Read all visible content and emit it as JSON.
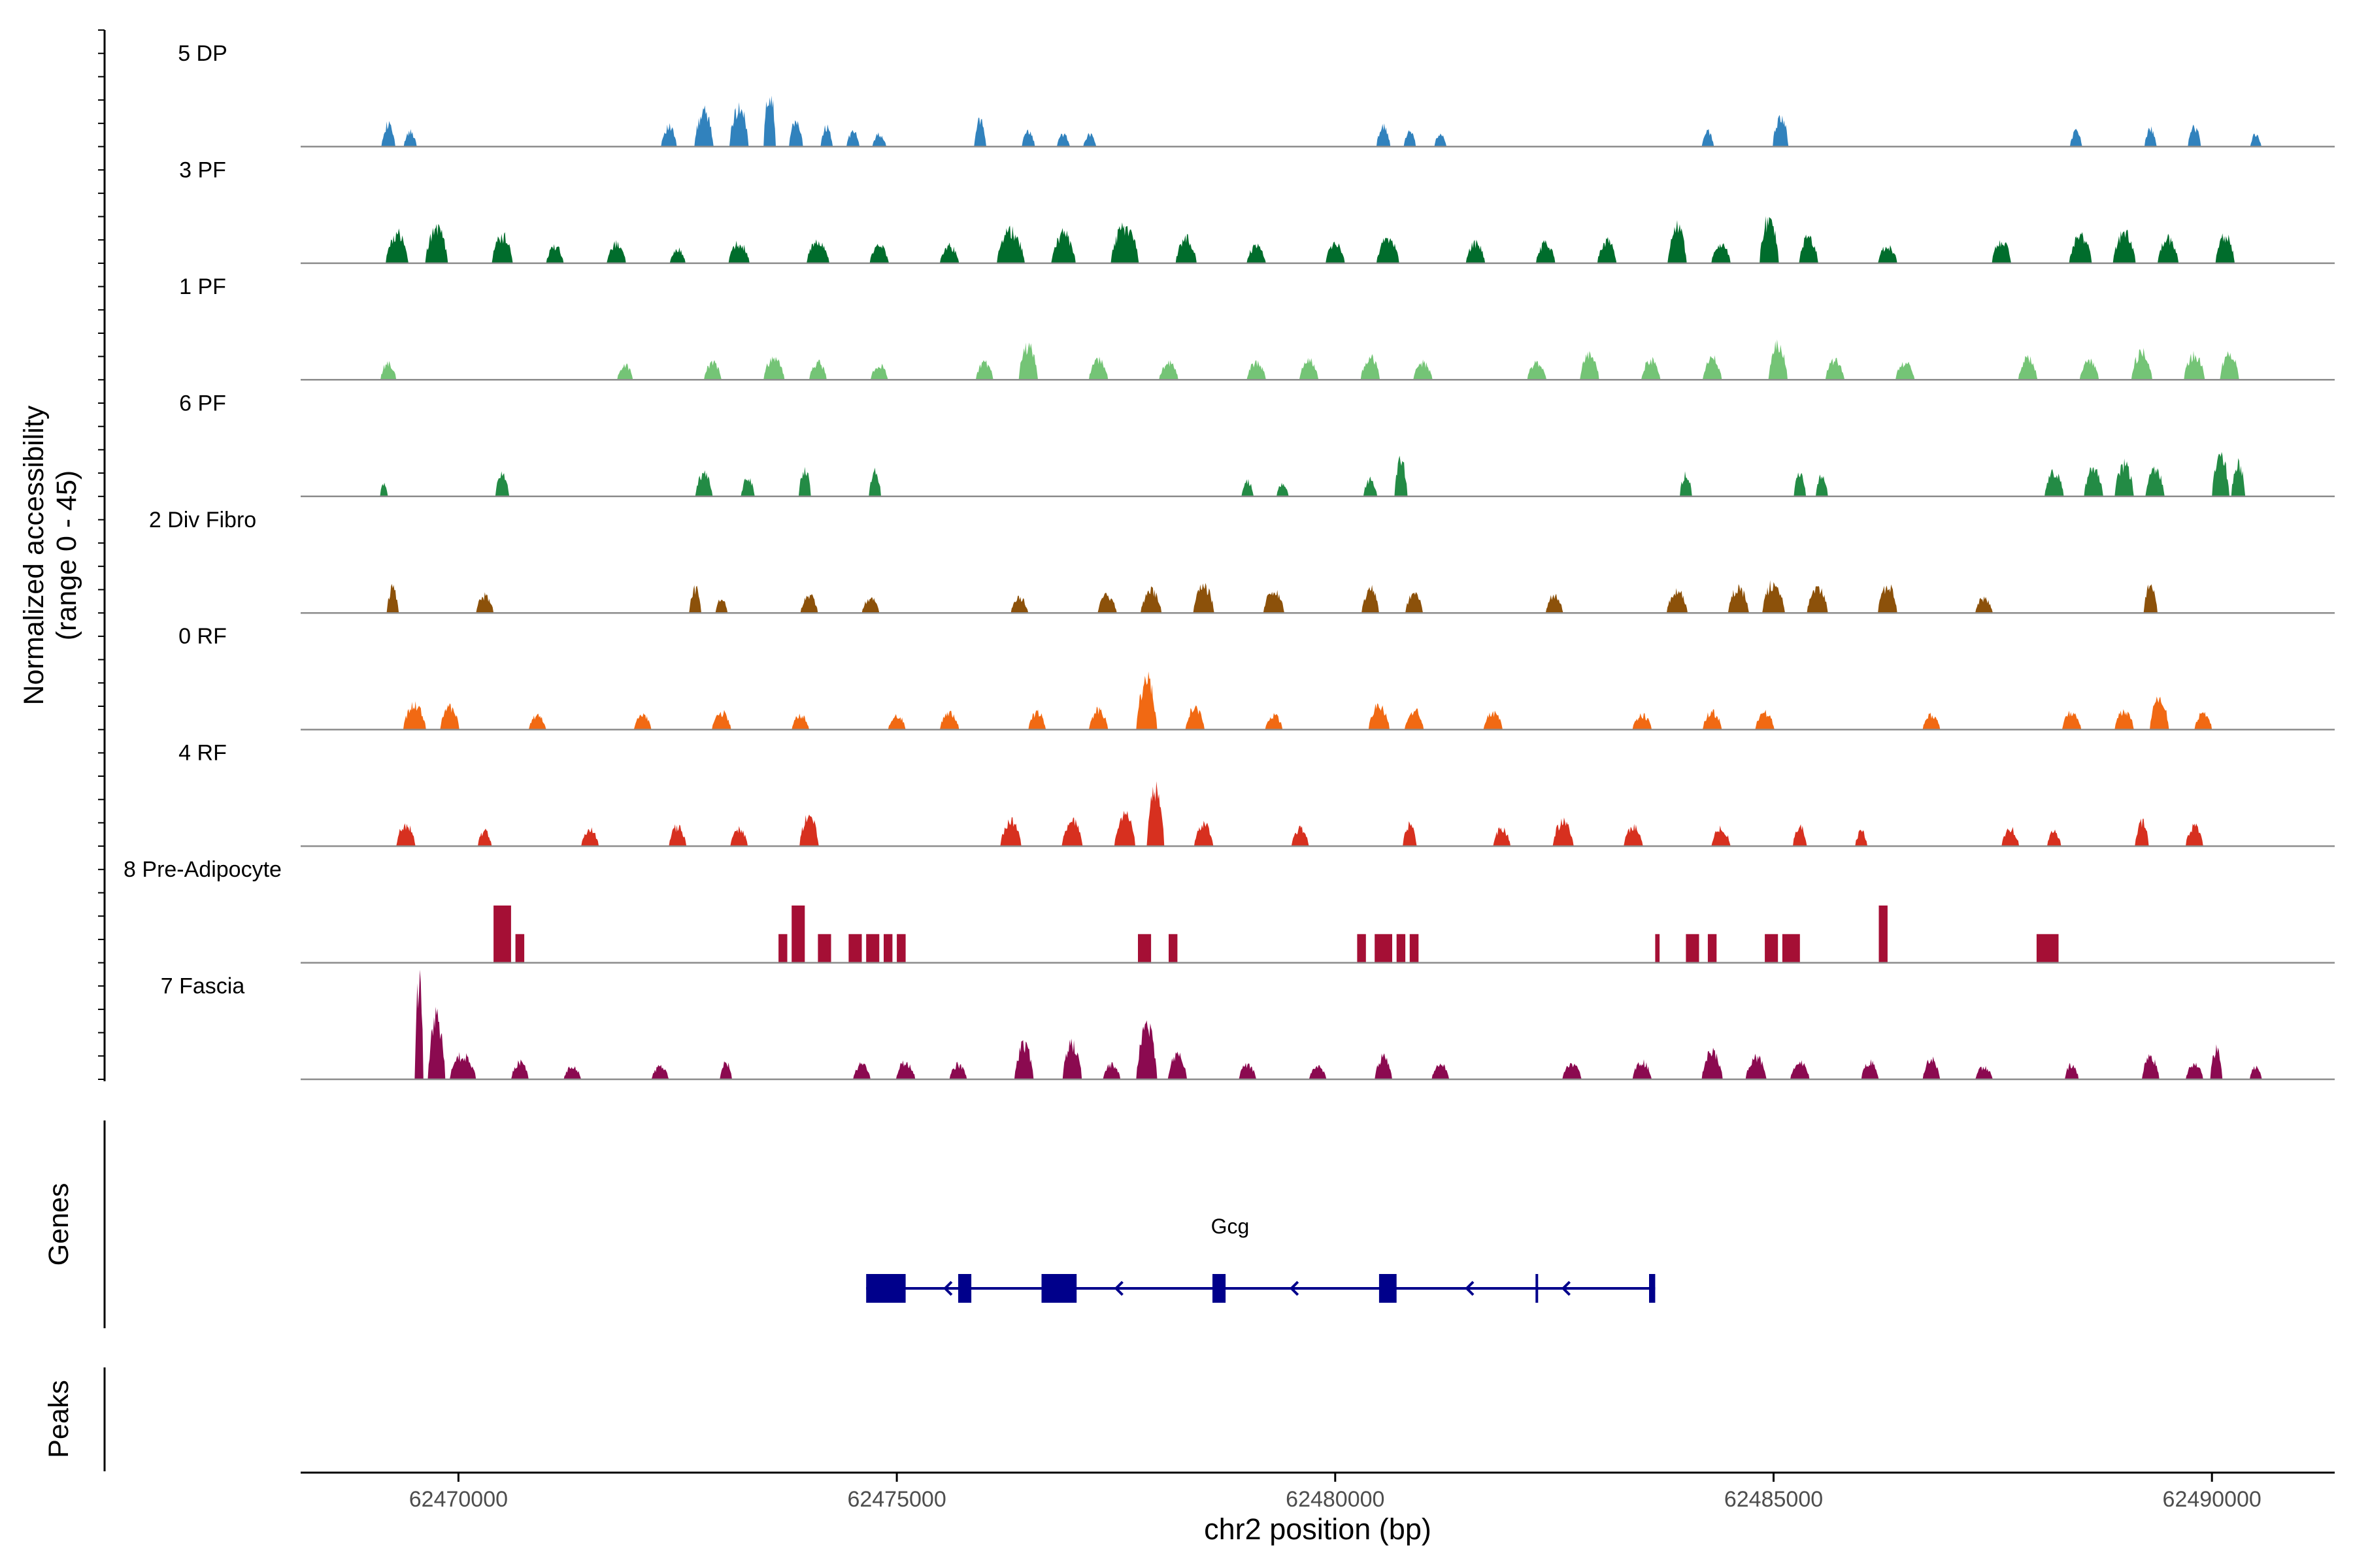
{
  "chart_data": {
    "type": "area",
    "title": "",
    "region": {
      "chromosome": "chr2",
      "start": 62468200,
      "end": 62491400
    },
    "ylabel": "Normalized accessibility",
    "ylabel_range": "(range 0 - 45)",
    "ylim": [
      0,
      45
    ],
    "xlabel": "chr2 position (bp)",
    "x_ticks": [
      62470000,
      62475000,
      62480000,
      62485000,
      62490000
    ],
    "x_tick_labels": [
      "62470000",
      "62475000",
      "62480000",
      "62485000",
      "62490000"
    ],
    "series": [
      {
        "name": "5 DP",
        "color": "#3182BD",
        "peaks": [
          [
            62469200,
            9,
            160
          ],
          [
            62469450,
            6,
            150
          ],
          [
            62472400,
            8,
            180
          ],
          [
            62472800,
            14,
            220
          ],
          [
            62473200,
            16,
            220
          ],
          [
            62473550,
            22,
            140
          ],
          [
            62473850,
            10,
            160
          ],
          [
            62474200,
            8,
            140
          ],
          [
            62474500,
            6,
            150
          ],
          [
            62474800,
            5,
            160
          ],
          [
            62475950,
            11,
            140
          ],
          [
            62476500,
            6,
            150
          ],
          [
            62476900,
            5,
            150
          ],
          [
            62477200,
            5,
            150
          ],
          [
            62480550,
            8,
            160
          ],
          [
            62480850,
            6,
            140
          ],
          [
            62481200,
            5,
            140
          ],
          [
            62484250,
            6,
            140
          ],
          [
            62485080,
            12,
            180
          ],
          [
            62488450,
            6,
            140
          ],
          [
            62489300,
            7,
            140
          ],
          [
            62489800,
            8,
            150
          ],
          [
            62490500,
            5,
            130
          ]
        ]
      },
      {
        "name": "3 PF",
        "color": "#006D2C",
        "peaks": [
          [
            62469300,
            12,
            260
          ],
          [
            62469750,
            14,
            260
          ],
          [
            62470500,
            11,
            240
          ],
          [
            62471100,
            7,
            200
          ],
          [
            62471800,
            8,
            220
          ],
          [
            62472500,
            6,
            180
          ],
          [
            62473200,
            8,
            240
          ],
          [
            62474100,
            9,
            260
          ],
          [
            62474800,
            7,
            220
          ],
          [
            62475600,
            7,
            220
          ],
          [
            62476300,
            13,
            320
          ],
          [
            62476900,
            12,
            280
          ],
          [
            62477600,
            15,
            320
          ],
          [
            62478300,
            10,
            240
          ],
          [
            62479100,
            7,
            220
          ],
          [
            62480000,
            8,
            220
          ],
          [
            62480600,
            10,
            260
          ],
          [
            62481600,
            8,
            220
          ],
          [
            62482400,
            8,
            220
          ],
          [
            62483100,
            9,
            220
          ],
          [
            62483900,
            15,
            220
          ],
          [
            62484400,
            8,
            220
          ],
          [
            62484950,
            18,
            220
          ],
          [
            62485400,
            11,
            220
          ],
          [
            62486300,
            7,
            220
          ],
          [
            62487600,
            9,
            220
          ],
          [
            62488500,
            11,
            260
          ],
          [
            62489000,
            12,
            260
          ],
          [
            62489500,
            10,
            240
          ],
          [
            62490150,
            11,
            220
          ]
        ]
      },
      {
        "name": "1 PF",
        "color": "#74C476",
        "peaks": [
          [
            62469200,
            7,
            180
          ],
          [
            62471900,
            6,
            180
          ],
          [
            62472900,
            7,
            200
          ],
          [
            62473600,
            9,
            240
          ],
          [
            62474100,
            7,
            200
          ],
          [
            62474800,
            6,
            200
          ],
          [
            62476000,
            7,
            200
          ],
          [
            62476500,
            14,
            220
          ],
          [
            62477300,
            8,
            220
          ],
          [
            62478100,
            7,
            220
          ],
          [
            62479100,
            7,
            220
          ],
          [
            62479700,
            8,
            220
          ],
          [
            62480400,
            9,
            220
          ],
          [
            62481000,
            7,
            220
          ],
          [
            62482300,
            7,
            220
          ],
          [
            62482900,
            11,
            220
          ],
          [
            62483600,
            8,
            220
          ],
          [
            62484300,
            9,
            220
          ],
          [
            62485050,
            14,
            220
          ],
          [
            62485700,
            8,
            220
          ],
          [
            62486500,
            7,
            220
          ],
          [
            62487900,
            9,
            220
          ],
          [
            62488600,
            8,
            220
          ],
          [
            62489200,
            11,
            240
          ],
          [
            62489800,
            10,
            240
          ],
          [
            62490200,
            11,
            220
          ]
        ]
      },
      {
        "name": "6 PF",
        "color": "#238B45",
        "peaks": [
          [
            62469150,
            5,
            90
          ],
          [
            62470500,
            9,
            160
          ],
          [
            62472800,
            9,
            200
          ],
          [
            62473300,
            7,
            160
          ],
          [
            62473950,
            11,
            140
          ],
          [
            62474750,
            10,
            140
          ],
          [
            62479000,
            6,
            140
          ],
          [
            62479400,
            5,
            140
          ],
          [
            62480400,
            7,
            160
          ],
          [
            62480750,
            15,
            150
          ],
          [
            62484000,
            9,
            140
          ],
          [
            62485300,
            9,
            140
          ],
          [
            62485550,
            8,
            140
          ],
          [
            62488200,
            10,
            220
          ],
          [
            62488650,
            11,
            220
          ],
          [
            62489000,
            13,
            220
          ],
          [
            62489350,
            11,
            220
          ],
          [
            62490100,
            16,
            200
          ],
          [
            62490300,
            13,
            160
          ]
        ]
      },
      {
        "name": "2 Div Fibro",
        "color": "#8C510A",
        "peaks": [
          [
            62469250,
            10,
            140
          ],
          [
            62470300,
            7,
            200
          ],
          [
            62472700,
            10,
            140
          ],
          [
            62473000,
            6,
            140
          ],
          [
            62474000,
            7,
            200
          ],
          [
            62474700,
            6,
            200
          ],
          [
            62476400,
            6,
            200
          ],
          [
            62477400,
            7,
            220
          ],
          [
            62477900,
            9,
            240
          ],
          [
            62478500,
            11,
            240
          ],
          [
            62479300,
            9,
            240
          ],
          [
            62480400,
            10,
            200
          ],
          [
            62480900,
            8,
            200
          ],
          [
            62482500,
            7,
            200
          ],
          [
            62483900,
            9,
            240
          ],
          [
            62484600,
            10,
            240
          ],
          [
            62485000,
            12,
            260
          ],
          [
            62485500,
            10,
            240
          ],
          [
            62486300,
            11,
            220
          ],
          [
            62487400,
            6,
            200
          ],
          [
            62489300,
            11,
            160
          ]
        ]
      },
      {
        "name": "0 RF",
        "color": "#F16913",
        "peaks": [
          [
            62469500,
            10,
            260
          ],
          [
            62469900,
            9,
            220
          ],
          [
            62470900,
            6,
            200
          ],
          [
            62472100,
            6,
            200
          ],
          [
            62473000,
            7,
            220
          ],
          [
            62473900,
            6,
            200
          ],
          [
            62475000,
            6,
            200
          ],
          [
            62475600,
            7,
            220
          ],
          [
            62476600,
            7,
            200
          ],
          [
            62477300,
            8,
            220
          ],
          [
            62477850,
            20,
            240
          ],
          [
            62478400,
            9,
            220
          ],
          [
            62479300,
            6,
            200
          ],
          [
            62480500,
            10,
            240
          ],
          [
            62480900,
            8,
            220
          ],
          [
            62481800,
            7,
            220
          ],
          [
            62483500,
            6,
            220
          ],
          [
            62484300,
            7,
            220
          ],
          [
            62484900,
            7,
            220
          ],
          [
            62486800,
            6,
            200
          ],
          [
            62488400,
            7,
            220
          ],
          [
            62489000,
            8,
            220
          ],
          [
            62489400,
            13,
            220
          ],
          [
            62489900,
            7,
            200
          ]
        ]
      },
      {
        "name": "4 RF",
        "color": "#D7301F",
        "peaks": [
          [
            62469400,
            9,
            220
          ],
          [
            62470300,
            6,
            160
          ],
          [
            62471500,
            7,
            200
          ],
          [
            62472500,
            8,
            200
          ],
          [
            62473200,
            7,
            200
          ],
          [
            62474000,
            12,
            220
          ],
          [
            62476300,
            10,
            240
          ],
          [
            62477000,
            10,
            240
          ],
          [
            62477600,
            13,
            240
          ],
          [
            62477950,
            22,
            200
          ],
          [
            62478500,
            9,
            220
          ],
          [
            62479600,
            7,
            200
          ],
          [
            62480850,
            9,
            160
          ],
          [
            62481900,
            7,
            200
          ],
          [
            62482600,
            10,
            240
          ],
          [
            62483400,
            8,
            220
          ],
          [
            62484400,
            7,
            220
          ],
          [
            62485300,
            8,
            160
          ],
          [
            62486000,
            6,
            140
          ],
          [
            62487700,
            7,
            200
          ],
          [
            62488200,
            6,
            160
          ],
          [
            62489200,
            10,
            160
          ],
          [
            62489800,
            8,
            200
          ]
        ]
      },
      {
        "name": "8 Pre-Adipocyte",
        "color": "#A50F35",
        "blocks": [
          [
            62470400,
            62470600,
            24
          ],
          [
            62470650,
            62470750,
            12
          ],
          [
            62473650,
            62473750,
            12
          ],
          [
            62473800,
            62473950,
            24
          ],
          [
            62474100,
            62474250,
            12
          ],
          [
            62474450,
            62474600,
            12
          ],
          [
            62474650,
            62474800,
            12
          ],
          [
            62474850,
            62474950,
            12
          ],
          [
            62475000,
            62475100,
            12
          ],
          [
            62477750,
            62477900,
            12
          ],
          [
            62478100,
            62478200,
            12
          ],
          [
            62480250,
            62480350,
            12
          ],
          [
            62480450,
            62480650,
            12
          ],
          [
            62480700,
            62480800,
            12
          ],
          [
            62480850,
            62480950,
            12
          ],
          [
            62483650,
            62483700,
            12
          ],
          [
            62484000,
            62484150,
            12
          ],
          [
            62484250,
            62484350,
            12
          ],
          [
            62484900,
            62485050,
            12
          ],
          [
            62485100,
            62485300,
            12
          ],
          [
            62486200,
            62486300,
            24
          ],
          [
            62488000,
            62488250,
            12
          ]
        ]
      },
      {
        "name": "7 Fascia",
        "color": "#8B0A50",
        "peaks": [
          [
            62469550,
            40,
            100
          ],
          [
            62469750,
            25,
            200
          ],
          [
            62470050,
            10,
            300
          ],
          [
            62470700,
            7,
            200
          ],
          [
            62471300,
            5,
            200
          ],
          [
            62472300,
            5,
            200
          ],
          [
            62473050,
            7,
            140
          ],
          [
            62474600,
            6,
            200
          ],
          [
            62475100,
            7,
            220
          ],
          [
            62475700,
            6,
            200
          ],
          [
            62476450,
            14,
            220
          ],
          [
            62477000,
            15,
            220
          ],
          [
            62477450,
            6,
            200
          ],
          [
            62477850,
            21,
            240
          ],
          [
            62478200,
            10,
            220
          ],
          [
            62479000,
            6,
            200
          ],
          [
            62479800,
            5,
            200
          ],
          [
            62480550,
            9,
            200
          ],
          [
            62481200,
            6,
            200
          ],
          [
            62482700,
            6,
            220
          ],
          [
            62483500,
            7,
            220
          ],
          [
            62484300,
            11,
            240
          ],
          [
            62484800,
            9,
            240
          ],
          [
            62485300,
            7,
            220
          ],
          [
            62486100,
            7,
            200
          ],
          [
            62486800,
            8,
            200
          ],
          [
            62487400,
            5,
            200
          ],
          [
            62488400,
            6,
            160
          ],
          [
            62489300,
            9,
            200
          ],
          [
            62489800,
            6,
            200
          ],
          [
            62490050,
            12,
            140
          ],
          [
            62490500,
            5,
            140
          ]
        ]
      }
    ],
    "genes_label": "Genes",
    "gene": {
      "name": "Gcg",
      "strand": "-",
      "start": 62474650,
      "end": 62483650,
      "color": "#00008B",
      "exons": [
        [
          62474650,
          62475100
        ],
        [
          62475700,
          62475850
        ],
        [
          62476650,
          62477050
        ],
        [
          62478600,
          62478750
        ],
        [
          62480500,
          62480700
        ],
        [
          62483580,
          62483650
        ]
      ],
      "intron_marks": [
        62482300
      ],
      "direction_arrows": [
        62475550,
        62476700,
        62477500,
        62479500,
        62481500,
        62482600
      ]
    },
    "peaks_label": "Peaks"
  }
}
